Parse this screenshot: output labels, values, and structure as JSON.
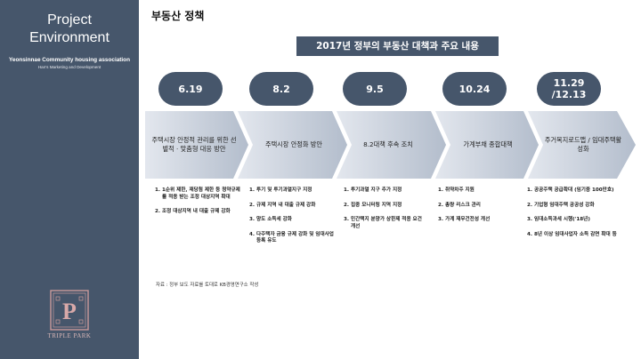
{
  "sidebar": {
    "title_line1": "Project",
    "title_line2": "Environment",
    "org_name": "Yeonsinnae Community housing association",
    "org_tagline": "Han's Marketing and Development",
    "logo_text": "TRIPLE PARK",
    "background": "#46566b"
  },
  "page": {
    "title": "부동산 정책",
    "banner": "2017년 정부의 부동산 대책과 주요 내용",
    "source": "자료 : 정부 보도 자료를 토대로 KB경영연구소 작성"
  },
  "timeline": [
    {
      "date": "6.19",
      "policy": "주택시장 안정적 관리를 위한 선별적 · 맞춤형 대응 방안",
      "notes": [
        "1순위 제한, 재당첨 제한 등 청약규제를 적용 받는 조정 대상지역 확대",
        "조정 대상지역 내 대출 규제 강화"
      ]
    },
    {
      "date": "8.2",
      "policy": "주택시장 안정화 방안",
      "notes": [
        "투기 및 투기과열지구 지정",
        "규제 지역 내 대출 규제 강화",
        "양도 소득세 강화",
        "다주택자 금융 규제 강화 및 임대사업 등록 유도"
      ]
    },
    {
      "date": "9.5",
      "policy": "8.2대책 후속 조치",
      "notes": [
        "투기과열 지구 추가 지정",
        "집중 모니터링 지역 지정",
        "민간택지 분양가 상한제 적용 요건 개선"
      ]
    },
    {
      "date": "10.24",
      "policy": "가계부채 종합대책",
      "notes": [
        "취약차주 지원",
        "총량 리스크 관리",
        "가계 재무건전성 개선"
      ]
    },
    {
      "date": "11.29 /12.13",
      "policy": "주거복지로드맵 / 임대주택활성화",
      "notes": [
        "공공주택 공급확대 (임기중 100만호)",
        "기업형 임대주택 공공성 강화",
        "임대소득과세 시행('18년)",
        "8년 이상 임대사업자 소득 감면 확대 등"
      ]
    }
  ],
  "colors": {
    "pill": "#46566b",
    "chevron_light": "#dfe4ec",
    "chevron_dark": "#b6c0cf"
  }
}
